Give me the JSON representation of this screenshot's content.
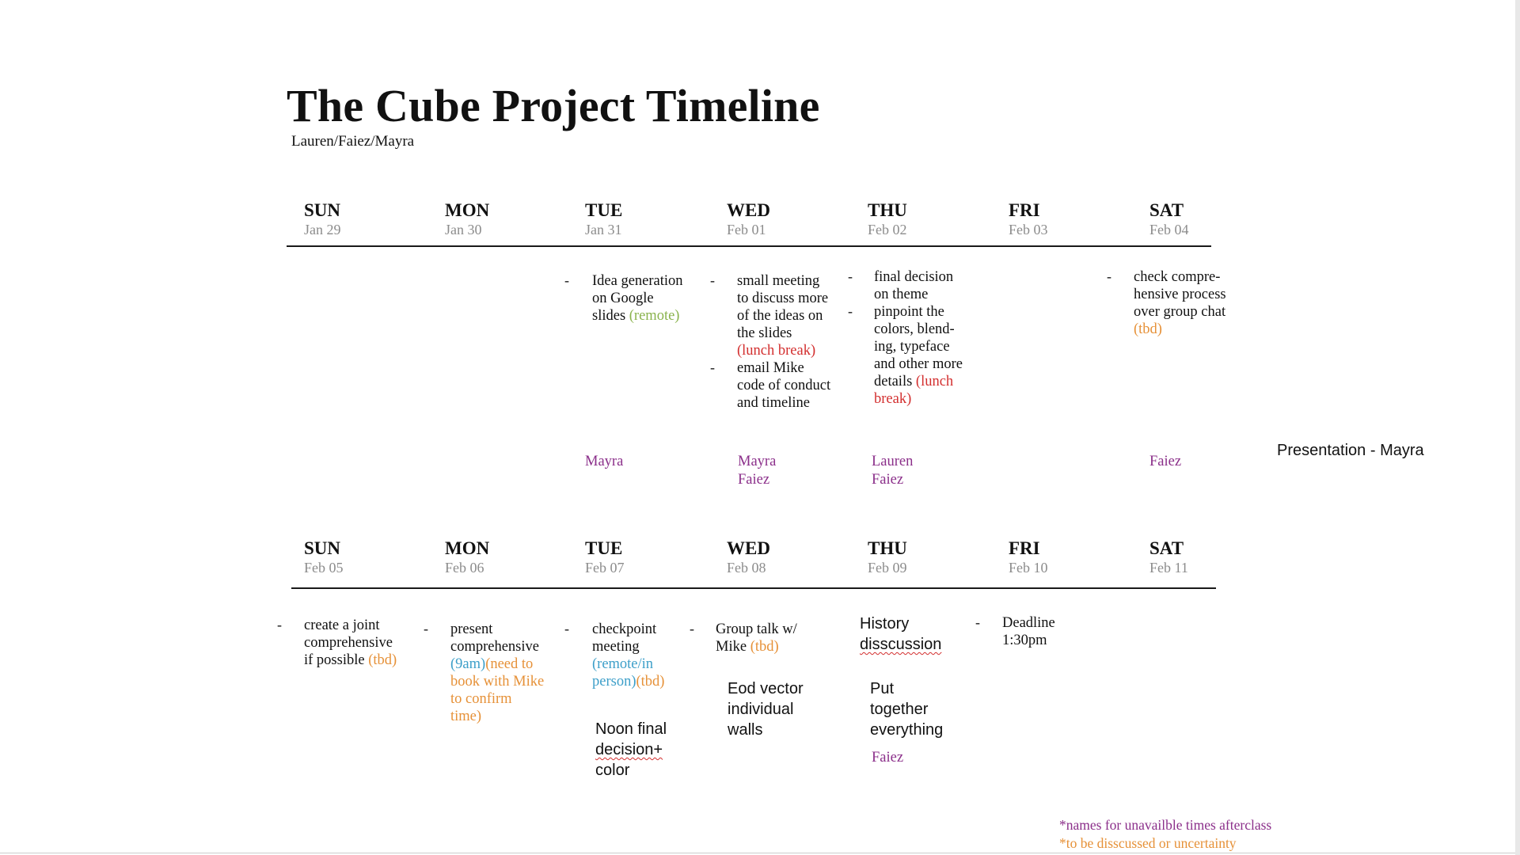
{
  "title": "The Cube Project Timeline",
  "subtitle": "Lauren/Faiez/Mayra",
  "week1": {
    "days": [
      {
        "name": "SUN",
        "date": "Jan 29"
      },
      {
        "name": "MON",
        "date": "Jan 30"
      },
      {
        "name": "TUE",
        "date": "Jan 31"
      },
      {
        "name": "WED",
        "date": "Feb 01"
      },
      {
        "name": "THU",
        "date": "Feb 02"
      },
      {
        "name": "FRI",
        "date": "Feb 03"
      },
      {
        "name": "SAT",
        "date": "Feb 04"
      }
    ],
    "tasks": {
      "tue": {
        "line1": "Idea generation",
        "line2": "on Google",
        "line3": "slides",
        "remote": "(remote)"
      },
      "wed": {
        "t1": [
          "small meeting",
          "to discuss more",
          "of the ideas on",
          "the slides"
        ],
        "t1_note": "(lunch break)",
        "t2": [
          "email Mike",
          "code of conduct",
          "and timeline"
        ]
      },
      "thu": {
        "t1": [
          "final decision",
          "on theme"
        ],
        "t2": [
          "pinpoint the",
          "colors, blend-",
          "ing, typeface",
          "and other more"
        ],
        "t2_last": "details",
        "t2_note1": "(lunch",
        "t2_note2": "break)"
      },
      "sat": {
        "lines": [
          "check compre-",
          "hensive process",
          "over group chat"
        ],
        "note": "(tbd)"
      }
    },
    "names": {
      "tue": [
        "Mayra"
      ],
      "wed": [
        "Mayra",
        "Faiez"
      ],
      "thu": [
        "Lauren",
        "Faiez"
      ],
      "sat": [
        "Faiez"
      ]
    },
    "side_note": "Presentation - Mayra"
  },
  "week2": {
    "days": [
      {
        "name": "SUN",
        "date": "Feb 05"
      },
      {
        "name": "MON",
        "date": "Feb 06"
      },
      {
        "name": "TUE",
        "date": "Feb 07"
      },
      {
        "name": "WED",
        "date": "Feb 08"
      },
      {
        "name": "THU",
        "date": "Feb 09"
      },
      {
        "name": "FRI",
        "date": "Feb 10"
      },
      {
        "name": "SAT",
        "date": "Feb 11"
      }
    ],
    "tasks": {
      "sun": {
        "lines": [
          "create a joint",
          "comprehensive"
        ],
        "last": "if possible",
        "note": "(tbd)"
      },
      "mon": {
        "lines": [
          "present",
          "comprehensive"
        ],
        "time": "(9am)",
        "note_lines": [
          "(need to",
          "book with Mike",
          "to confirm",
          "time)"
        ]
      },
      "tue": {
        "lines": [
          "checkpoint",
          "meeting"
        ],
        "blue1": "(remote/in",
        "blue2": "person)",
        "note": "(tbd)",
        "extra1": "Noon final",
        "extra2": "decision+",
        "extra3": "color"
      },
      "wed": {
        "line1": "Group talk w/",
        "line2": "Mike",
        "note": "(tbd)",
        "extra": [
          "Eod vector",
          "individual",
          "walls"
        ]
      },
      "thu": {
        "line1": "History",
        "line2": "disscussion",
        "extra": [
          "Put",
          "together",
          "everything"
        ],
        "name": "Faiez"
      },
      "fri": {
        "line1": "Deadline",
        "line2": "1:30pm"
      }
    }
  },
  "legend": {
    "line1": "*names for unavailble times afterclass",
    "line2": "*to be disscussed or uncertainty",
    "color1": "#8b2f8a",
    "color2": "#e69138"
  }
}
